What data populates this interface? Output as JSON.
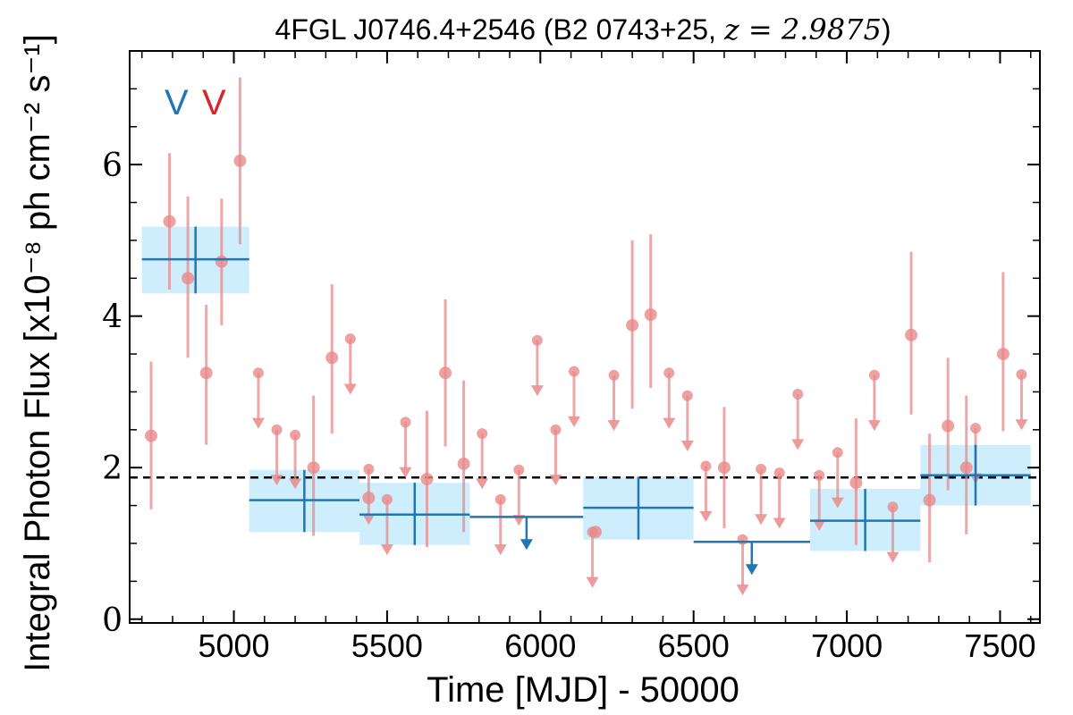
{
  "chart_data": {
    "type": "scatter",
    "title": "4FGL J0746.4+2546 (B2 0743+25, z = 2.9875)",
    "title_parts": {
      "prefix": "4FGL J0746.4+2546 (B2 0743+25, ",
      "math": "z = 2.9875",
      "suffix": ")"
    },
    "xlabel": "Time [MJD] - 50000",
    "ylabel": "Integral Photon Flux [x10⁻⁸ ph cm⁻² s⁻¹]",
    "xlim": [
      4660,
      7630
    ],
    "ylim": [
      -0.05,
      7.5
    ],
    "xticks": [
      5000,
      5500,
      6000,
      6500,
      7000,
      7500
    ],
    "yticks": [
      0,
      2,
      4,
      6
    ],
    "xtick_labels": [
      "5000",
      "5500",
      "6000",
      "6500",
      "7000",
      "7500"
    ],
    "ytick_labels": [
      "0",
      "2",
      "4",
      "6"
    ],
    "legend_labels": [
      {
        "text": "V",
        "color": "#1f77b4"
      },
      {
        "text": "V",
        "color": "#d62728"
      }
    ],
    "reference_line": {
      "y": 1.87,
      "style": "dashed",
      "color": "#000000"
    },
    "colors": {
      "short_bins": "#e88a8a",
      "long_bins": "#1f77b4",
      "long_band": "#cfeefd"
    },
    "short_bin_detections": [
      {
        "x": 4730,
        "y": 2.42,
        "ylo": 1.45,
        "yhi": 3.4
      },
      {
        "x": 4790,
        "y": 5.25,
        "ylo": 4.35,
        "yhi": 6.15
      },
      {
        "x": 4850,
        "y": 4.5,
        "ylo": 3.45,
        "yhi": 5.58
      },
      {
        "x": 4910,
        "y": 3.25,
        "ylo": 2.3,
        "yhi": 4.15
      },
      {
        "x": 4960,
        "y": 4.72,
        "ylo": 3.88,
        "yhi": 5.55
      },
      {
        "x": 5020,
        "y": 6.05,
        "ylo": 4.95,
        "yhi": 7.15
      },
      {
        "x": 5260,
        "y": 2.0,
        "ylo": 1.1,
        "yhi": 2.95
      },
      {
        "x": 5320,
        "y": 3.45,
        "ylo": 2.45,
        "yhi": 4.42
      },
      {
        "x": 5440,
        "y": 1.6,
        "ylo": 0.0,
        "yhi": 0.0
      },
      {
        "x": 5630,
        "y": 1.85,
        "ylo": 0.95,
        "yhi": 2.75
      },
      {
        "x": 5690,
        "y": 3.25,
        "ylo": 2.28,
        "yhi": 4.22
      },
      {
        "x": 5750,
        "y": 2.05,
        "ylo": 1.15,
        "yhi": 3.15
      },
      {
        "x": 6180,
        "y": 1.15,
        "ylo": 0.0,
        "yhi": 0.0
      },
      {
        "x": 6300,
        "y": 3.88,
        "ylo": 2.78,
        "yhi": 5.0
      },
      {
        "x": 6360,
        "y": 4.02,
        "ylo": 3.05,
        "yhi": 5.08
      },
      {
        "x": 6600,
        "y": 2.0,
        "ylo": 1.2,
        "yhi": 2.8
      },
      {
        "x": 7030,
        "y": 1.8,
        "ylo": 0.98,
        "yhi": 2.65
      },
      {
        "x": 7210,
        "y": 3.75,
        "ylo": 2.7,
        "yhi": 4.85
      },
      {
        "x": 7270,
        "y": 1.57,
        "ylo": 0.75,
        "yhi": 2.45
      },
      {
        "x": 7330,
        "y": 2.55,
        "ylo": 1.7,
        "yhi": 3.45
      },
      {
        "x": 7390,
        "y": 2.0,
        "ylo": 1.12,
        "yhi": 2.95
      },
      {
        "x": 7510,
        "y": 3.5,
        "ylo": 2.48,
        "yhi": 4.58
      }
    ],
    "short_bin_upper_limits": [
      {
        "x": 5080,
        "y": 3.25,
        "arrow_to": 2.55
      },
      {
        "x": 5140,
        "y": 2.5,
        "arrow_to": 1.8
      },
      {
        "x": 5200,
        "y": 2.43,
        "arrow_to": 1.75
      },
      {
        "x": 5380,
        "y": 3.7,
        "arrow_to": 3.0
      },
      {
        "x": 5440,
        "y": 1.98,
        "arrow_to": 1.28
      },
      {
        "x": 5500,
        "y": 1.58,
        "arrow_to": 0.88
      },
      {
        "x": 5560,
        "y": 2.6,
        "arrow_to": 1.9
      },
      {
        "x": 5810,
        "y": 2.45,
        "arrow_to": 1.75
      },
      {
        "x": 5870,
        "y": 1.58,
        "arrow_to": 0.88
      },
      {
        "x": 5930,
        "y": 1.97,
        "arrow_to": 1.27
      },
      {
        "x": 5990,
        "y": 3.68,
        "arrow_to": 2.98
      },
      {
        "x": 6050,
        "y": 2.5,
        "arrow_to": 1.8
      },
      {
        "x": 6110,
        "y": 3.27,
        "arrow_to": 2.57
      },
      {
        "x": 6170,
        "y": 1.15,
        "arrow_to": 0.45
      },
      {
        "x": 6240,
        "y": 3.22,
        "arrow_to": 2.52
      },
      {
        "x": 6420,
        "y": 3.25,
        "arrow_to": 2.55
      },
      {
        "x": 6480,
        "y": 2.95,
        "arrow_to": 2.25
      },
      {
        "x": 6540,
        "y": 2.02,
        "arrow_to": 1.32
      },
      {
        "x": 6660,
        "y": 1.05,
        "arrow_to": 0.35
      },
      {
        "x": 6720,
        "y": 1.98,
        "arrow_to": 1.28
      },
      {
        "x": 6780,
        "y": 1.93,
        "arrow_to": 1.23
      },
      {
        "x": 6840,
        "y": 2.97,
        "arrow_to": 2.27
      },
      {
        "x": 6910,
        "y": 1.9,
        "arrow_to": 1.2
      },
      {
        "x": 6970,
        "y": 2.2,
        "arrow_to": 1.5
      },
      {
        "x": 7090,
        "y": 3.22,
        "arrow_to": 2.52
      },
      {
        "x": 7150,
        "y": 1.48,
        "arrow_to": 0.78
      },
      {
        "x": 7420,
        "y": 2.52,
        "arrow_to": 1.82
      },
      {
        "x": 7570,
        "y": 3.23,
        "arrow_to": 2.53
      }
    ],
    "long_bin_detections": [
      {
        "x0": 4700,
        "x1": 5050,
        "y": 4.75,
        "ylo": 4.3,
        "yhi": 5.18,
        "xc": 4875
      },
      {
        "x0": 5050,
        "x1": 5410,
        "y": 1.57,
        "ylo": 1.15,
        "yhi": 1.97,
        "xc": 5230
      },
      {
        "x0": 5410,
        "x1": 5770,
        "y": 1.38,
        "ylo": 0.98,
        "yhi": 1.8,
        "xc": 5590
      },
      {
        "x0": 6140,
        "x1": 6500,
        "y": 1.47,
        "ylo": 1.05,
        "yhi": 1.88,
        "xc": 6320
      },
      {
        "x0": 6880,
        "x1": 7240,
        "y": 1.3,
        "ylo": 0.9,
        "yhi": 1.72,
        "xc": 7060
      },
      {
        "x0": 7240,
        "x1": 7600,
        "y": 1.9,
        "ylo": 1.5,
        "yhi": 2.3,
        "xc": 7420
      }
    ],
    "long_bin_upper_limits": [
      {
        "x0": 5770,
        "x1": 6140,
        "y": 1.35,
        "xc": 5955,
        "arrow_to": 0.95
      },
      {
        "x0": 6500,
        "x1": 6880,
        "y": 1.02,
        "xc": 6690,
        "arrow_to": 0.62
      }
    ]
  }
}
